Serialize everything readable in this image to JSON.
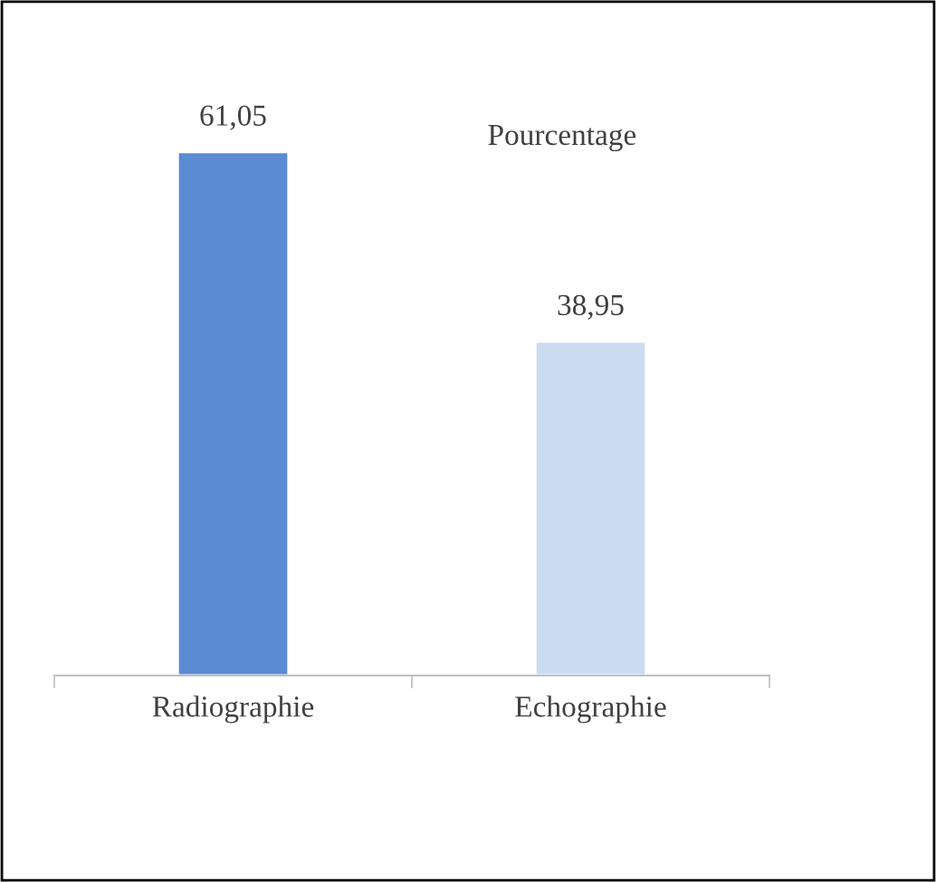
{
  "chart_data": {
    "type": "bar",
    "title": "Pourcentage",
    "categories": [
      "Radiographie",
      "Echographie"
    ],
    "values": [
      61.05,
      38.95
    ],
    "colors": [
      "#5b8bd2",
      "#c9dcf0"
    ],
    "value_labels": [
      "61,05",
      "38,95"
    ],
    "legend": false,
    "grid": false
  }
}
